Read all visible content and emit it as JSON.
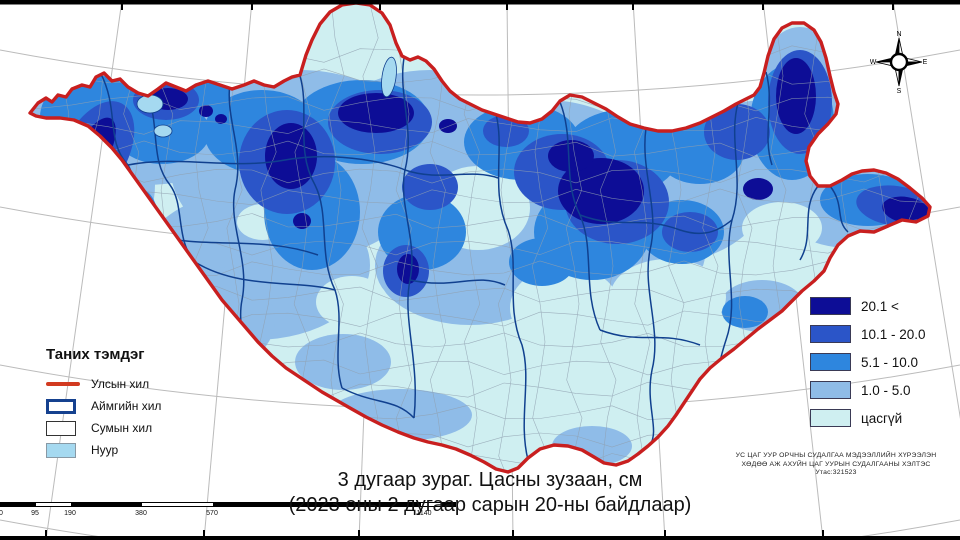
{
  "title": {
    "line1": "3 дугаар зураг. Цасны зузаан, см",
    "line2": "(2023 оны 2 дугаар сарын 20-ны байдлаар)"
  },
  "credits": {
    "line1": "УС ЦАГ УУР ОРЧНЫ СУДАЛГАА МЭДЭЭЛЛИЙН ХҮРЭЭЛЭН",
    "line2": "ХӨДӨӨ АЖ АХУЙН ЦАГ УУРЫН СУДАЛГААНЫ ХЭЛТЭС",
    "line3": "Утас:321523"
  },
  "legend_left": {
    "title": "Таних тэмдэг",
    "items": [
      {
        "label": "Улсын хил",
        "swatch": "red-line"
      },
      {
        "label": "Аймгийн хил",
        "swatch": "navy-outline-box"
      },
      {
        "label": "Сумын хил",
        "swatch": "black-outline-box"
      },
      {
        "label": "Нуур",
        "swatch": "lake-fill-box"
      }
    ]
  },
  "legend_right": {
    "items": [
      {
        "label": "20.1 <",
        "color": "#0d0d96"
      },
      {
        "label": "10.1 - 20.0",
        "color": "#2b55c8"
      },
      {
        "label": "5.1 - 10.0",
        "color": "#2e86de"
      },
      {
        "label": "1.0 - 5.0",
        "color": "#8fbce8"
      },
      {
        "label": "цасгүй",
        "color": "#cfeff1"
      }
    ]
  },
  "scale_bar": {
    "labels": [
      "0",
      "95",
      "190",
      "380",
      "570",
      "1140"
    ]
  },
  "compass": {
    "n": "N",
    "e": "E",
    "s": "S",
    "w": "W"
  },
  "colors": {
    "country_border": "#c81f1f",
    "aimag_border": "#10408f",
    "soum_border": "#90a0b0",
    "lake": "#a5d9f0",
    "graticule": "#bbbbbb",
    "snow_over_20": "#0d0d96",
    "snow_10_20": "#2b55c8",
    "snow_5_10": "#2e86de",
    "snow_1_5": "#8fbce8",
    "snow_none": "#cfeff1"
  }
}
